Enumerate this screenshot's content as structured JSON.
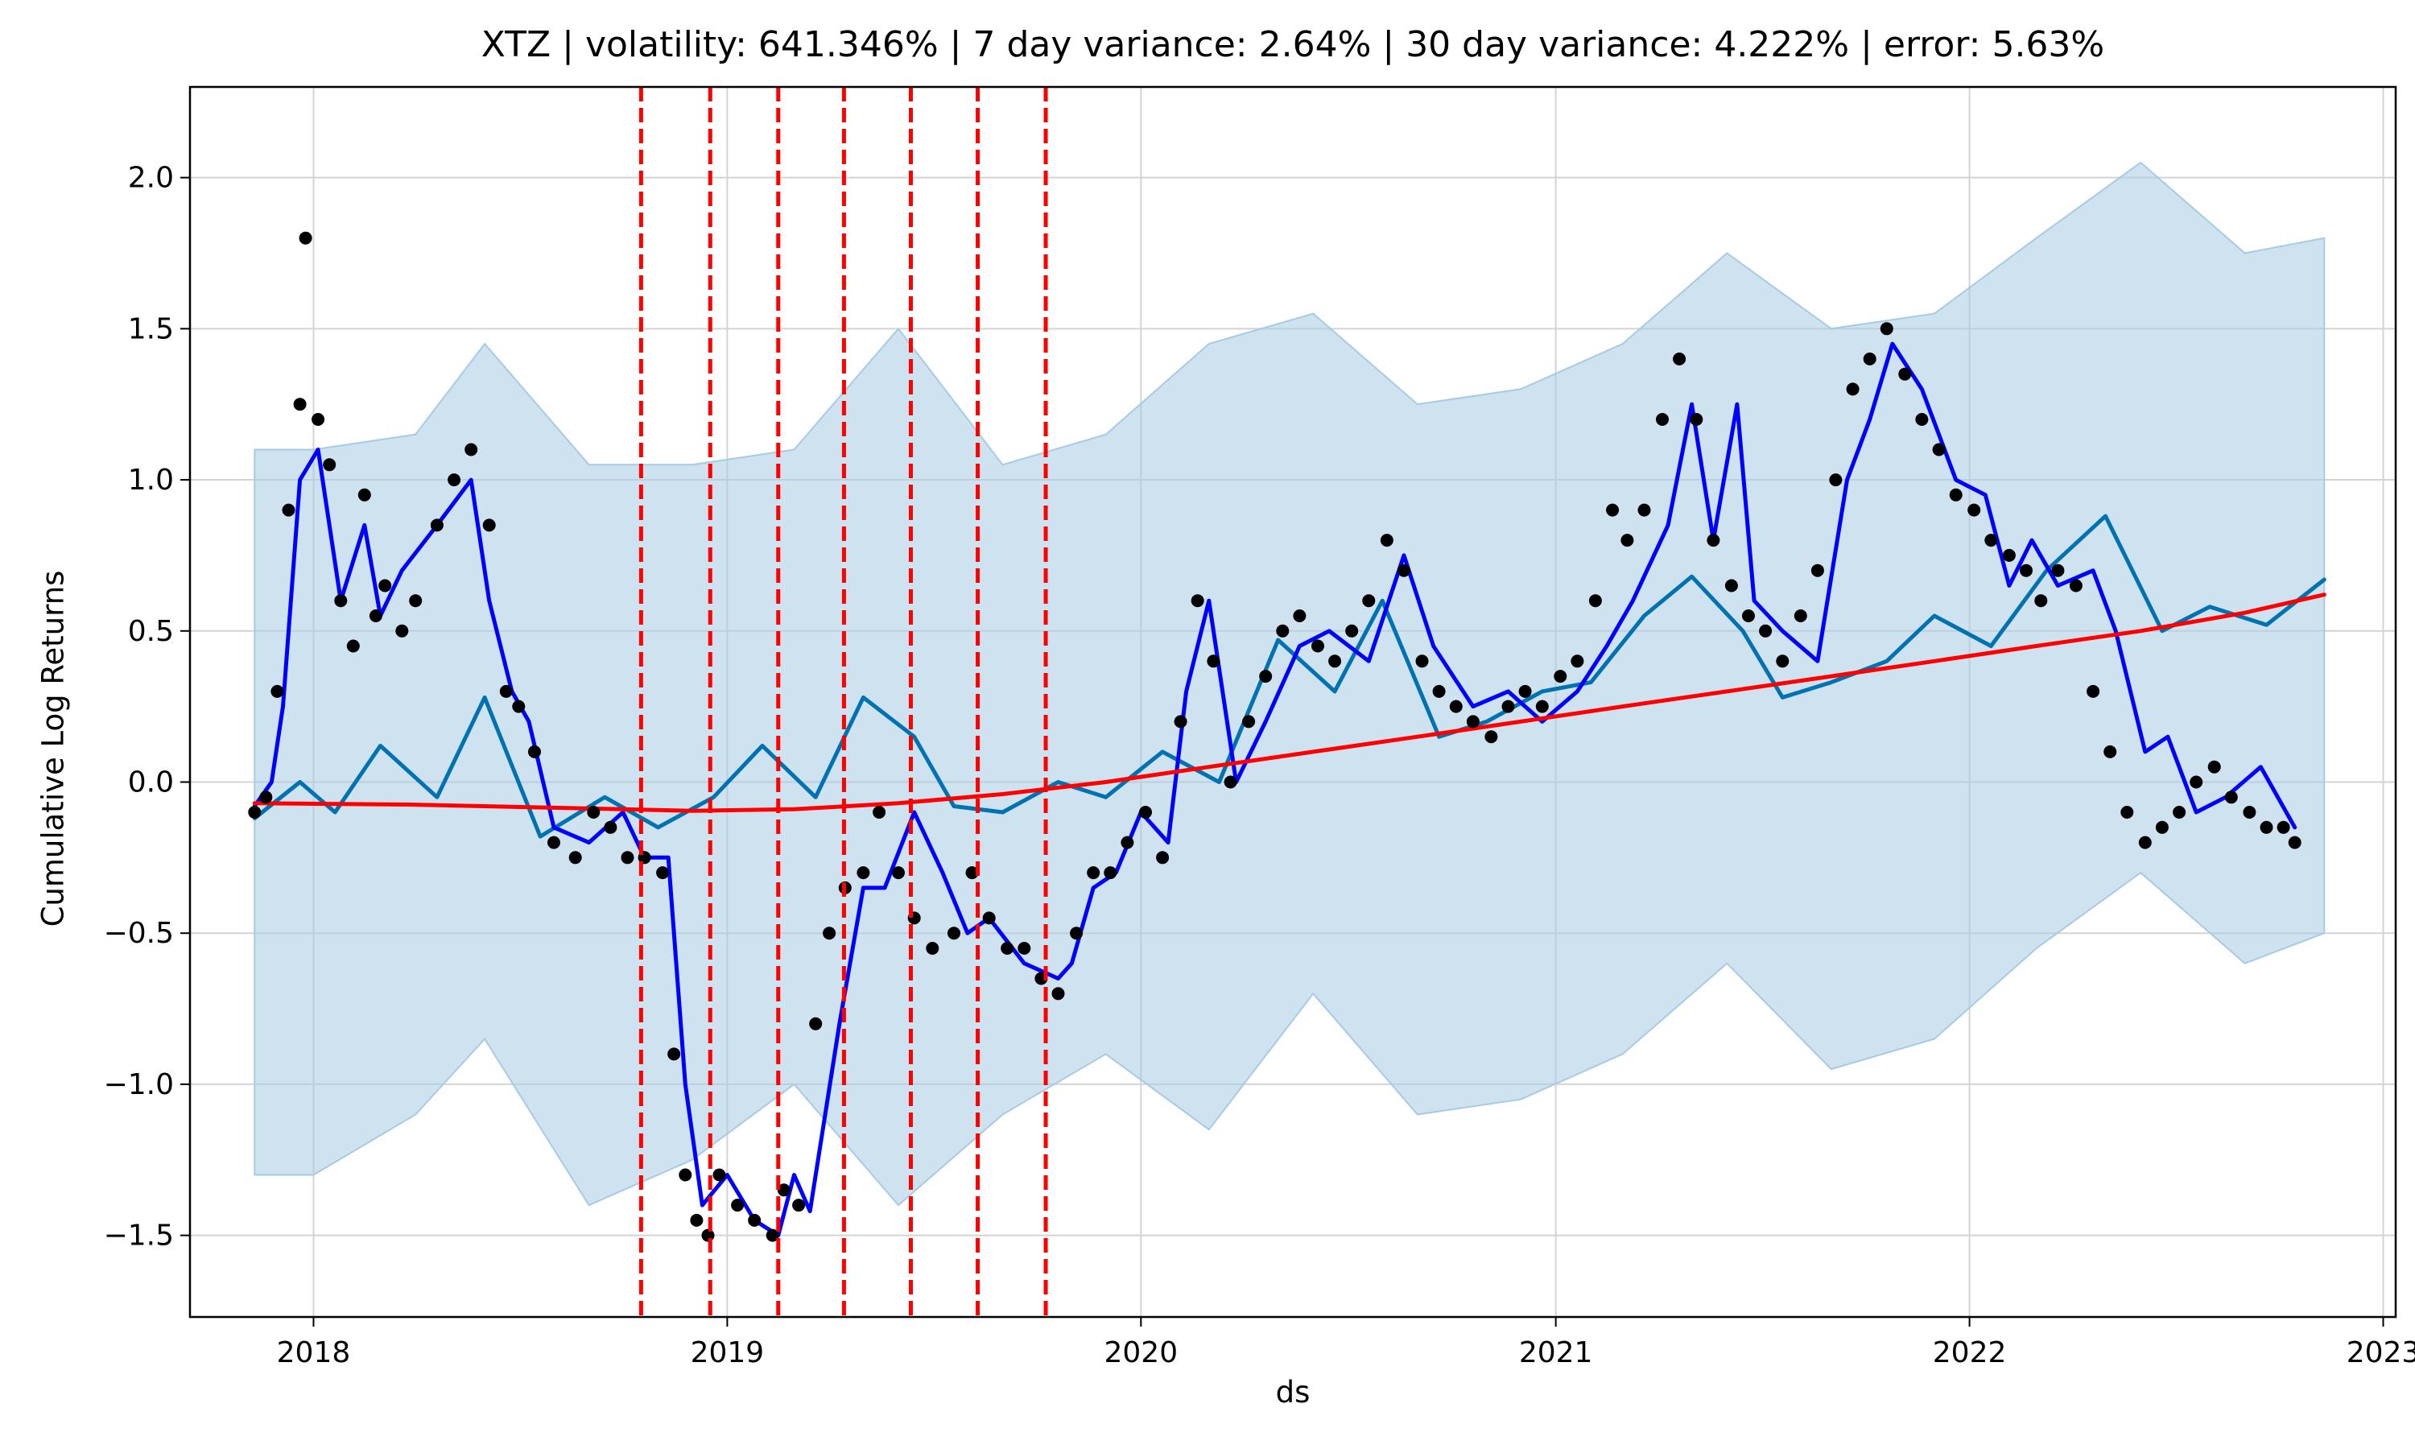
{
  "chart_data": {
    "type": "line",
    "title": "XTZ | volatility: 641.346% | 7 day variance: 2.64% | 30 day variance: 4.222% | error: 5.63%",
    "xlabel": "ds",
    "ylabel": "Cumulative Log Returns",
    "x_ticks": [
      "2018",
      "2019",
      "2020",
      "2021",
      "2022",
      "2023"
    ],
    "y_ticks": [
      "2.0",
      "1.5",
      "1.0",
      "0.5",
      "0.0",
      "−0.5",
      "−1.0",
      "−1.5"
    ],
    "xlim": [
      "2017-09-14",
      "2023-01-12"
    ],
    "ylim": [
      -1.77,
      2.3
    ],
    "grid": true,
    "changepoints": [
      "2018-10-17",
      "2018-12-17",
      "2019-02-15",
      "2019-04-14",
      "2019-06-12",
      "2019-08-10",
      "2019-10-09"
    ],
    "colors": {
      "observed": "#000000",
      "trend": "#ff0000",
      "forecast": "#0000ff",
      "seasonality": "#0072b2",
      "interval": "#a6cbe3",
      "changepoint": "#ff0000"
    },
    "series": [
      {
        "role": "forecast-interval",
        "x": [
          "2017-11-10",
          "2018-01-01",
          "2018-04-01",
          "2018-06-01",
          "2018-09-01",
          "2018-12-01",
          "2019-03-01",
          "2019-06-01",
          "2019-09-01",
          "2019-12-01",
          "2020-03-01",
          "2020-06-01",
          "2020-09-01",
          "2020-12-01",
          "2021-03-01",
          "2021-06-01",
          "2021-09-01",
          "2021-12-01",
          "2022-03-01",
          "2022-06-01",
          "2022-09-01",
          "2022-11-10"
        ],
        "upper": [
          1.1,
          1.1,
          1.15,
          1.45,
          1.05,
          1.05,
          1.1,
          1.5,
          1.05,
          1.15,
          1.45,
          1.55,
          1.25,
          1.3,
          1.45,
          1.75,
          1.5,
          1.55,
          1.8,
          2.05,
          1.75,
          1.8
        ],
        "lower": [
          -1.3,
          -1.3,
          -1.1,
          -0.85,
          -1.4,
          -1.25,
          -1.0,
          -1.4,
          -1.1,
          -0.9,
          -1.15,
          -0.7,
          -1.1,
          -1.05,
          -0.9,
          -0.6,
          -0.95,
          -0.85,
          -0.55,
          -0.3,
          -0.6,
          -0.5
        ]
      },
      {
        "name": "",
        "role": "trend",
        "x": [
          "2017-11-10",
          "2018-04-01",
          "2018-08-01",
          "2018-12-01",
          "2019-03-01",
          "2019-06-01",
          "2019-09-01",
          "2019-12-01",
          "2020-03-01",
          "2020-06-01",
          "2020-09-01",
          "2020-12-01",
          "2021-03-01",
          "2021-06-01",
          "2021-09-01",
          "2021-12-01",
          "2022-03-01",
          "2022-06-01",
          "2022-09-01",
          "2022-11-10"
        ],
        "y": [
          -0.07,
          -0.075,
          -0.085,
          -0.095,
          -0.09,
          -0.07,
          -0.04,
          0.0,
          0.05,
          0.1,
          0.15,
          0.2,
          0.25,
          0.3,
          0.35,
          0.4,
          0.45,
          0.5,
          0.56,
          0.62
        ]
      },
      {
        "name": "",
        "role": "seasonality",
        "x": [
          "2017-11-10",
          "2017-12-20",
          "2018-01-20",
          "2018-03-01",
          "2018-04-20",
          "2018-06-01",
          "2018-07-20",
          "2018-09-15",
          "2018-11-01",
          "2018-12-20",
          "2019-02-01",
          "2019-03-20",
          "2019-05-01",
          "2019-06-15",
          "2019-07-20",
          "2019-09-01",
          "2019-10-20",
          "2019-12-01",
          "2020-01-20",
          "2020-03-10",
          "2020-05-01",
          "2020-06-20",
          "2020-08-01",
          "2020-09-20",
          "2020-11-01",
          "2020-12-20",
          "2021-02-01",
          "2021-03-20",
          "2021-05-01",
          "2021-06-15",
          "2021-07-20",
          "2021-09-01",
          "2021-10-20",
          "2021-12-01",
          "2022-01-20",
          "2022-03-10",
          "2022-05-01",
          "2022-06-20",
          "2022-08-01",
          "2022-09-20",
          "2022-11-10"
        ],
        "y": [
          -0.12,
          0.0,
          -0.1,
          0.12,
          -0.05,
          0.28,
          -0.18,
          -0.05,
          -0.15,
          -0.05,
          0.12,
          -0.05,
          0.28,
          0.15,
          -0.08,
          -0.1,
          0.0,
          -0.05,
          0.1,
          0.0,
          0.47,
          0.3,
          0.6,
          0.15,
          0.2,
          0.3,
          0.33,
          0.55,
          0.68,
          0.5,
          0.28,
          0.33,
          0.4,
          0.55,
          0.45,
          0.7,
          0.88,
          0.5,
          0.58,
          0.52,
          0.67
        ]
      },
      {
        "name": "",
        "role": "forecast",
        "x": [
          "2017-11-10",
          "2017-11-25",
          "2017-12-05",
          "2017-12-20",
          "2018-01-05",
          "2018-01-25",
          "2018-02-15",
          "2018-03-01",
          "2018-03-20",
          "2018-04-20",
          "2018-05-20",
          "2018-06-05",
          "2018-06-25",
          "2018-07-10",
          "2018-08-01",
          "2018-09-01",
          "2018-10-01",
          "2018-10-20",
          "2018-11-10",
          "2018-11-25",
          "2018-12-10",
          "2019-01-01",
          "2019-01-25",
          "2019-02-15",
          "2019-03-01",
          "2019-03-15",
          "2019-04-10",
          "2019-05-01",
          "2019-05-20",
          "2019-06-15",
          "2019-07-10",
          "2019-08-01",
          "2019-08-20",
          "2019-09-20",
          "2019-10-20",
          "2019-11-01",
          "2019-11-20",
          "2019-12-10",
          "2020-01-01",
          "2020-01-25",
          "2020-02-10",
          "2020-03-01",
          "2020-03-25",
          "2020-04-20",
          "2020-05-20",
          "2020-06-15",
          "2020-07-20",
          "2020-08-20",
          "2020-09-15",
          "2020-10-20",
          "2020-11-20",
          "2020-12-20",
          "2021-01-20",
          "2021-02-15",
          "2021-03-10",
          "2021-04-10",
          "2021-05-01",
          "2021-05-20",
          "2021-06-10",
          "2021-06-25",
          "2021-07-20",
          "2021-08-20",
          "2021-09-15",
          "2021-10-05",
          "2021-10-25",
          "2021-11-20",
          "2021-12-20",
          "2022-01-15",
          "2022-02-05",
          "2022-02-25",
          "2022-03-20",
          "2022-04-20",
          "2022-05-10",
          "2022-06-05",
          "2022-06-25",
          "2022-07-20",
          "2022-08-15",
          "2022-09-15",
          "2022-10-15"
        ],
        "y": [
          -0.08,
          0.0,
          0.25,
          1.0,
          1.1,
          0.6,
          0.85,
          0.55,
          0.7,
          0.85,
          1.0,
          0.6,
          0.3,
          0.2,
          -0.15,
          -0.2,
          -0.1,
          -0.25,
          -0.25,
          -1.0,
          -1.4,
          -1.3,
          -1.45,
          -1.5,
          -1.3,
          -1.42,
          -0.8,
          -0.35,
          -0.35,
          -0.1,
          -0.3,
          -0.5,
          -0.45,
          -0.6,
          -0.65,
          -0.6,
          -0.35,
          -0.3,
          -0.1,
          -0.2,
          0.3,
          0.6,
          0.0,
          0.2,
          0.45,
          0.5,
          0.4,
          0.75,
          0.45,
          0.25,
          0.3,
          0.2,
          0.3,
          0.45,
          0.6,
          0.85,
          1.25,
          0.8,
          1.25,
          0.6,
          0.5,
          0.4,
          1.0,
          1.2,
          1.45,
          1.3,
          1.0,
          0.95,
          0.65,
          0.8,
          0.65,
          0.7,
          0.5,
          0.1,
          0.15,
          -0.1,
          -0.05,
          0.05,
          -0.15
        ]
      },
      {
        "name": "",
        "role": "observed",
        "x": [
          "2017-11-10",
          "2017-11-20",
          "2017-11-30",
          "2017-12-10",
          "2017-12-20",
          "2017-12-25",
          "2018-01-05",
          "2018-01-15",
          "2018-01-25",
          "2018-02-05",
          "2018-02-15",
          "2018-02-25",
          "2018-03-05",
          "2018-03-20",
          "2018-04-01",
          "2018-04-20",
          "2018-05-05",
          "2018-05-20",
          "2018-06-05",
          "2018-06-20",
          "2018-07-01",
          "2018-07-15",
          "2018-08-01",
          "2018-08-20",
          "2018-09-05",
          "2018-09-20",
          "2018-10-05",
          "2018-10-20",
          "2018-11-05",
          "2018-11-15",
          "2018-11-25",
          "2018-12-05",
          "2018-12-15",
          "2018-12-25",
          "2019-01-10",
          "2019-01-25",
          "2019-02-10",
          "2019-02-20",
          "2019-03-05",
          "2019-03-20",
          "2019-04-01",
          "2019-04-15",
          "2019-05-01",
          "2019-05-15",
          "2019-06-01",
          "2019-06-15",
          "2019-07-01",
          "2019-07-20",
          "2019-08-05",
          "2019-08-20",
          "2019-09-05",
          "2019-09-20",
          "2019-10-05",
          "2019-10-20",
          "2019-11-05",
          "2019-11-20",
          "2019-12-05",
          "2019-12-20",
          "2020-01-05",
          "2020-01-20",
          "2020-02-05",
          "2020-02-20",
          "2020-03-05",
          "2020-03-20",
          "2020-04-05",
          "2020-04-20",
          "2020-05-05",
          "2020-05-20",
          "2020-06-05",
          "2020-06-20",
          "2020-07-05",
          "2020-07-20",
          "2020-08-05",
          "2020-08-20",
          "2020-09-05",
          "2020-09-20",
          "2020-10-05",
          "2020-10-20",
          "2020-11-05",
          "2020-11-20",
          "2020-12-05",
          "2020-12-20",
          "2021-01-05",
          "2021-01-20",
          "2021-02-05",
          "2021-02-20",
          "2021-03-05",
          "2021-03-20",
          "2021-04-05",
          "2021-04-20",
          "2021-05-05",
          "2021-05-20",
          "2021-06-05",
          "2021-06-20",
          "2021-07-05",
          "2021-07-20",
          "2021-08-05",
          "2021-08-20",
          "2021-09-05",
          "2021-09-20",
          "2021-10-05",
          "2021-10-20",
          "2021-11-05",
          "2021-11-20",
          "2021-12-05",
          "2021-12-20",
          "2022-01-05",
          "2022-01-20",
          "2022-02-05",
          "2022-02-20",
          "2022-03-05",
          "2022-03-20",
          "2022-04-05",
          "2022-04-20",
          "2022-05-05",
          "2022-05-20",
          "2022-06-05",
          "2022-06-20",
          "2022-07-05",
          "2022-07-20",
          "2022-08-05",
          "2022-08-20",
          "2022-09-05",
          "2022-09-20",
          "2022-10-05",
          "2022-10-15"
        ],
        "y": [
          -0.1,
          -0.05,
          0.3,
          0.9,
          1.25,
          1.8,
          1.2,
          1.05,
          0.6,
          0.45,
          0.95,
          0.55,
          0.65,
          0.5,
          0.6,
          0.85,
          1.0,
          1.1,
          0.85,
          0.3,
          0.25,
          0.1,
          -0.2,
          -0.25,
          -0.1,
          -0.15,
          -0.25,
          -0.25,
          -0.3,
          -0.9,
          -1.3,
          -1.45,
          -1.5,
          -1.3,
          -1.4,
          -1.45,
          -1.5,
          -1.35,
          -1.4,
          -0.8,
          -0.5,
          -0.35,
          -0.3,
          -0.1,
          -0.3,
          -0.45,
          -0.55,
          -0.5,
          -0.3,
          -0.45,
          -0.55,
          -0.55,
          -0.65,
          -0.7,
          -0.5,
          -0.3,
          -0.3,
          -0.2,
          -0.1,
          -0.25,
          0.2,
          0.6,
          0.4,
          0.0,
          0.2,
          0.35,
          0.5,
          0.55,
          0.45,
          0.4,
          0.5,
          0.6,
          0.8,
          0.7,
          0.4,
          0.3,
          0.25,
          0.2,
          0.15,
          0.25,
          0.3,
          0.25,
          0.35,
          0.4,
          0.6,
          0.9,
          0.8,
          0.9,
          1.2,
          1.4,
          1.2,
          0.8,
          0.65,
          0.55,
          0.5,
          0.4,
          0.55,
          0.7,
          1.0,
          1.3,
          1.4,
          1.5,
          1.35,
          1.2,
          1.1,
          0.95,
          0.9,
          0.8,
          0.75,
          0.7,
          0.6,
          0.7,
          0.65,
          0.3,
          0.1,
          -0.1,
          -0.2,
          -0.15,
          -0.1,
          0.0,
          0.05,
          -0.05,
          -0.1,
          -0.15,
          -0.15,
          -0.2
        ]
      }
    ]
  }
}
